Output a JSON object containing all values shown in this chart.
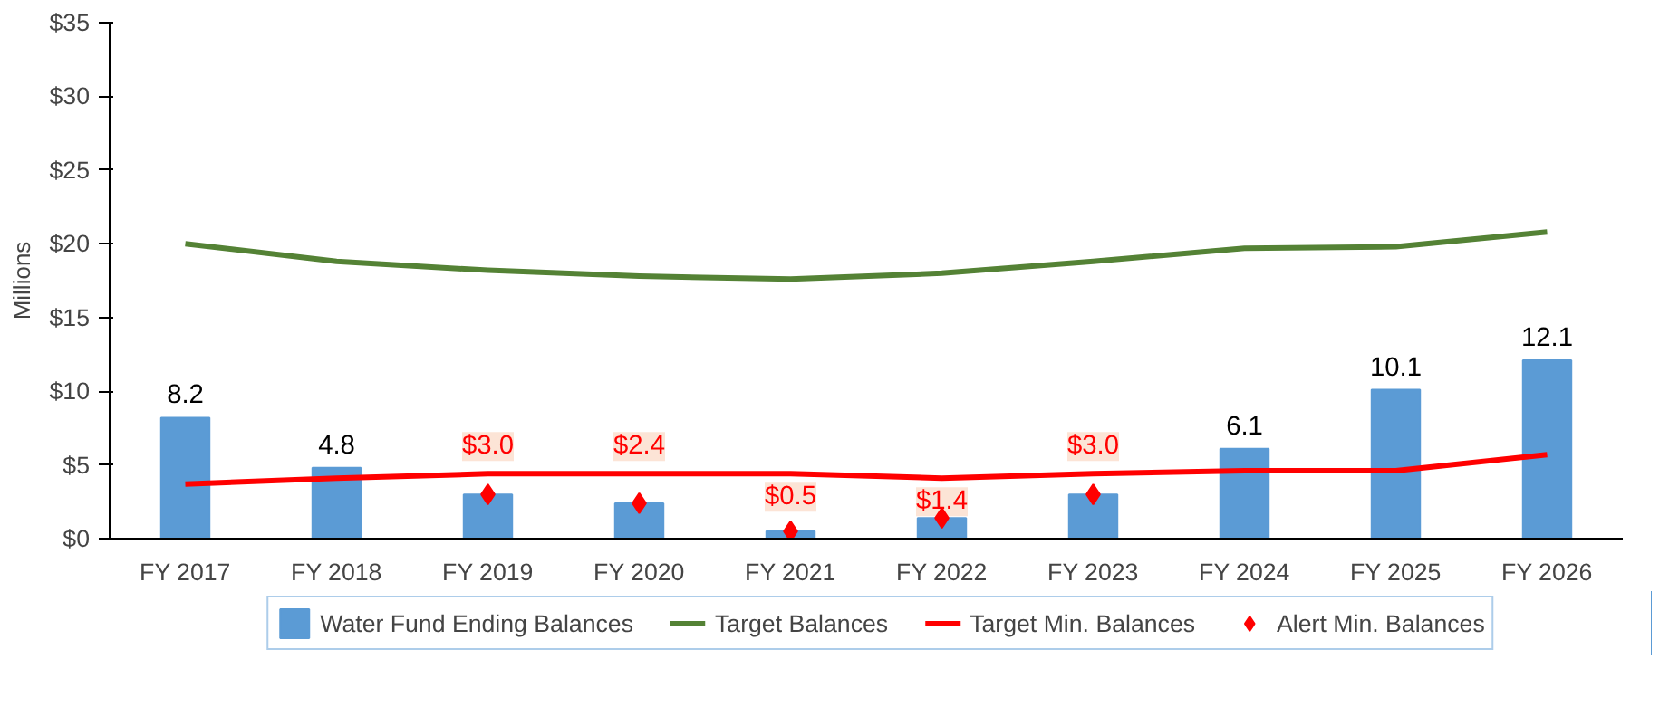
{
  "chart_data": {
    "type": "bar",
    "ylabel": "Millions",
    "categories": [
      "FY 2017",
      "FY 2018",
      "FY 2019",
      "FY 2020",
      "FY 2021",
      "FY 2022",
      "FY 2023",
      "FY 2024",
      "FY 2025",
      "FY 2026"
    ],
    "series": [
      {
        "name": "Water Fund Ending Balances",
        "type": "bar",
        "color": "#5b9bd5",
        "values": [
          8.2,
          4.8,
          3.0,
          2.4,
          0.5,
          1.4,
          3.0,
          6.1,
          10.1,
          12.1
        ],
        "value_labels": [
          "8.2",
          "4.8",
          null,
          null,
          null,
          null,
          null,
          "6.1",
          "10.1",
          "12.1"
        ]
      },
      {
        "name": "Target Balances",
        "type": "line",
        "color": "#548235",
        "values": [
          20.0,
          18.8,
          18.2,
          17.8,
          17.6,
          18.0,
          18.8,
          19.7,
          19.8,
          20.8
        ]
      },
      {
        "name": "Target Min. Balances",
        "type": "line",
        "color": "#ff0000",
        "values": [
          3.7,
          4.1,
          4.4,
          4.4,
          4.4,
          4.1,
          4.4,
          4.6,
          4.6,
          5.7
        ]
      },
      {
        "name": "Alert Min. Balances",
        "type": "scatter",
        "marker": "diamond",
        "color": "#ff0000",
        "values": [
          null,
          null,
          3.0,
          2.4,
          0.5,
          1.4,
          3.0,
          null,
          null,
          null
        ],
        "value_labels": [
          null,
          null,
          "$3.0",
          "$2.4",
          "$0.5",
          "$1.4",
          "$3.0",
          null,
          null,
          null
        ]
      }
    ],
    "ylim": [
      0,
      35
    ],
    "yticks": [
      {
        "value": 0,
        "label": "$0"
      },
      {
        "value": 5,
        "label": "$5"
      },
      {
        "value": 10,
        "label": "$10"
      },
      {
        "value": 15,
        "label": "$15"
      },
      {
        "value": 20,
        "label": "$20"
      },
      {
        "value": 25,
        "label": "$25"
      },
      {
        "value": 30,
        "label": "$30"
      },
      {
        "value": 35,
        "label": "$35"
      }
    ],
    "grid": false,
    "legend": "bottom"
  }
}
